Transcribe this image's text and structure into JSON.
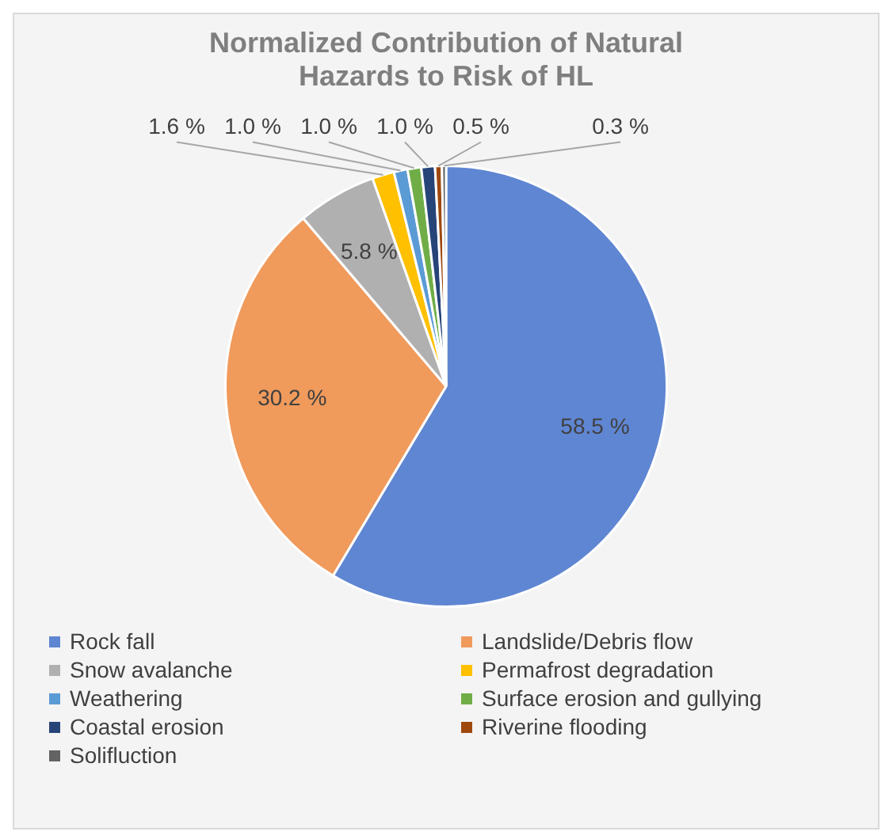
{
  "chart_data": {
    "type": "pie",
    "title": "Normalized Contribution of Natural Hazards to Risk of HL",
    "categories": [
      "Rock fall",
      "Landslide/Debris flow",
      "Snow avalanche",
      "Permafrost degradation",
      "Weathering",
      "Surface erosion and gullying",
      "Coastal erosion",
      "Riverine flooding",
      "Solifluction"
    ],
    "values": [
      58.5,
      30.2,
      5.8,
      1.6,
      1.0,
      1.0,
      1.0,
      0.5,
      0.3
    ],
    "value_labels": [
      "58.5 %",
      "30.2 %",
      "5.8 %",
      "1.6 %",
      "1.0 %",
      "1.0 %",
      "1.0 %",
      "0.5 %",
      "0.3 %"
    ],
    "colors": [
      "#5f86d2",
      "#f09a5c",
      "#b0b0b0",
      "#ffc000",
      "#5b9bd5",
      "#70ad47",
      "#264478",
      "#9e480e",
      "#636363"
    ],
    "legend": "bottom"
  }
}
